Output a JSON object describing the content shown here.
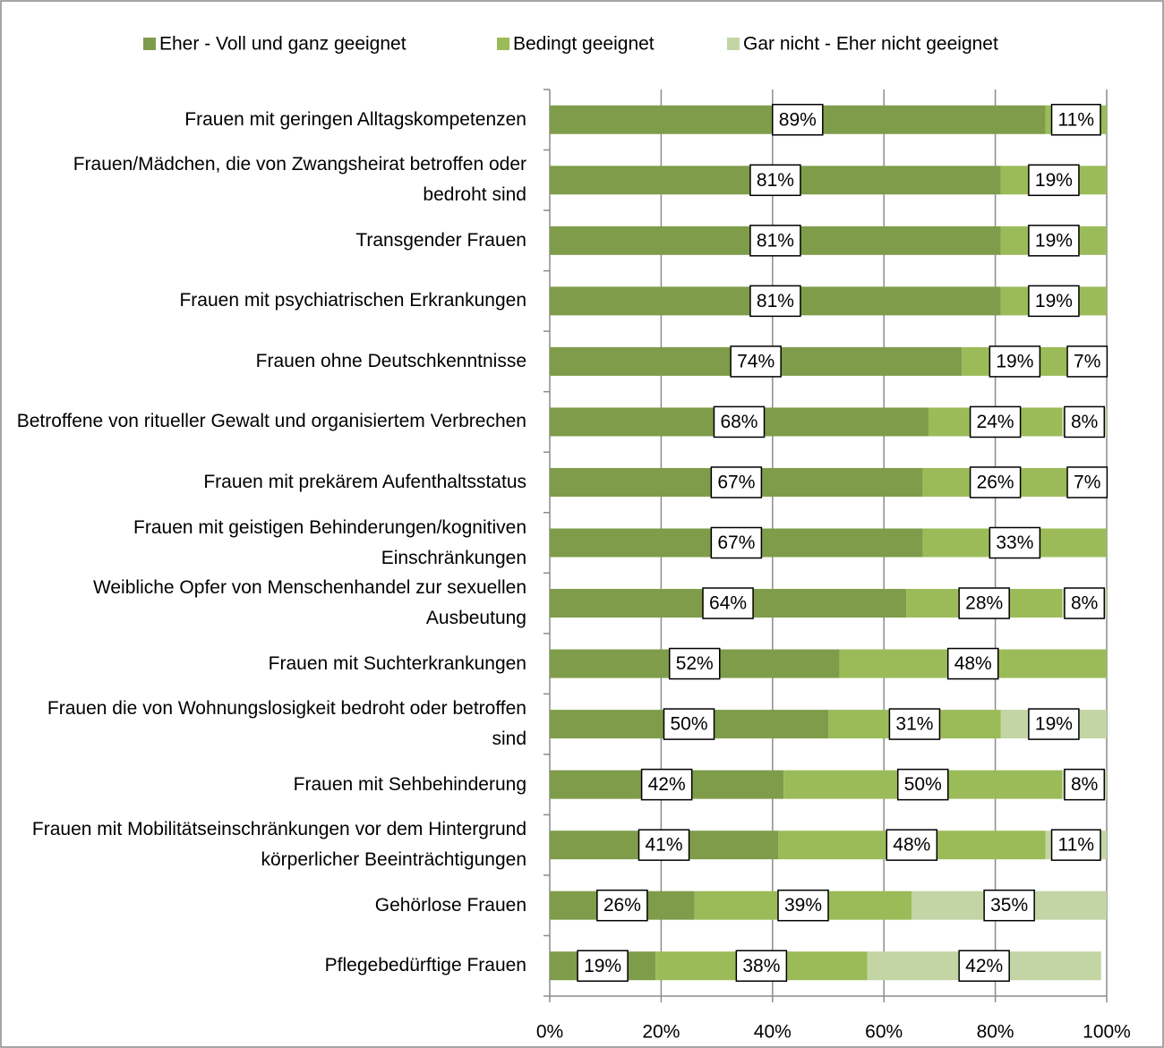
{
  "chart_data": {
    "type": "stacked-bar-horizontal",
    "categories": [
      "Frauen mit geringen Alltagskompetenzen",
      "Frauen/Mädchen, die von Zwangsheirat betroffen oder bedroht sind",
      "Transgender Frauen",
      "Frauen mit psychiatrischen Erkrankungen",
      "Frauen ohne Deutschkenntnisse",
      "Betroffene von ritueller Gewalt und organisiertem Verbrechen",
      "Frauen mit prekärem Aufenthaltsstatus",
      "Frauen mit geistigen Behinderungen/kognitiven Einschränkungen",
      "Weibliche Opfer von Menschenhandel zur sexuellen Ausbeutung",
      "Frauen mit Suchterkrankungen",
      "Frauen die von Wohnungslosigkeit bedroht oder betroffen sind",
      "Frauen mit Sehbehinderung",
      "Frauen mit Mobilitätseinschränkungen vor dem Hintergrund körperlicher Beeinträchtigungen",
      "Gehörlose Frauen",
      "Pflegebedürftige Frauen"
    ],
    "series": [
      {
        "name": "Eher - Voll und ganz geeignet",
        "color": "#7f9c4a",
        "values": [
          89,
          81,
          81,
          81,
          74,
          68,
          67,
          67,
          64,
          52,
          50,
          42,
          41,
          26,
          19
        ],
        "value_labels": [
          "89%",
          "81%",
          "81%",
          "81%",
          "74%",
          "68%",
          "67%",
          "67%",
          "64%",
          "52%",
          "50%",
          "42%",
          "41%",
          "26%",
          "19%"
        ]
      },
      {
        "name": "Bedingt geeignet",
        "color": "#9bbb59",
        "values": [
          11,
          19,
          19,
          19,
          19,
          24,
          26,
          33,
          28,
          48,
          31,
          50,
          48,
          39,
          38
        ],
        "value_labels": [
          "11%",
          "19%",
          "19%",
          "19%",
          "19%",
          "24%",
          "26%",
          "33%",
          "28%",
          "48%",
          "31%",
          "50%",
          "48%",
          "39%",
          "38%"
        ]
      },
      {
        "name": "Gar nicht - Eher nicht geeignet",
        "color": "#c3d5a5",
        "values": [
          0,
          0,
          0,
          0,
          7,
          8,
          7,
          0,
          8,
          0,
          19,
          8,
          11,
          35,
          42
        ],
        "value_labels": [
          null,
          null,
          null,
          null,
          "7%",
          "8%",
          "7%",
          null,
          "8%",
          null,
          "19%",
          "8%",
          "11%",
          "35%",
          "42%"
        ]
      }
    ],
    "xlim": [
      0,
      100
    ],
    "xticks": [
      {
        "value": 0,
        "label": "0%"
      },
      {
        "value": 20,
        "label": "20%"
      },
      {
        "value": 40,
        "label": "40%"
      },
      {
        "value": 60,
        "label": "60%"
      },
      {
        "value": 80,
        "label": "80%"
      },
      {
        "value": 100,
        "label": "100%"
      }
    ],
    "grid": true,
    "legend": "top"
  }
}
